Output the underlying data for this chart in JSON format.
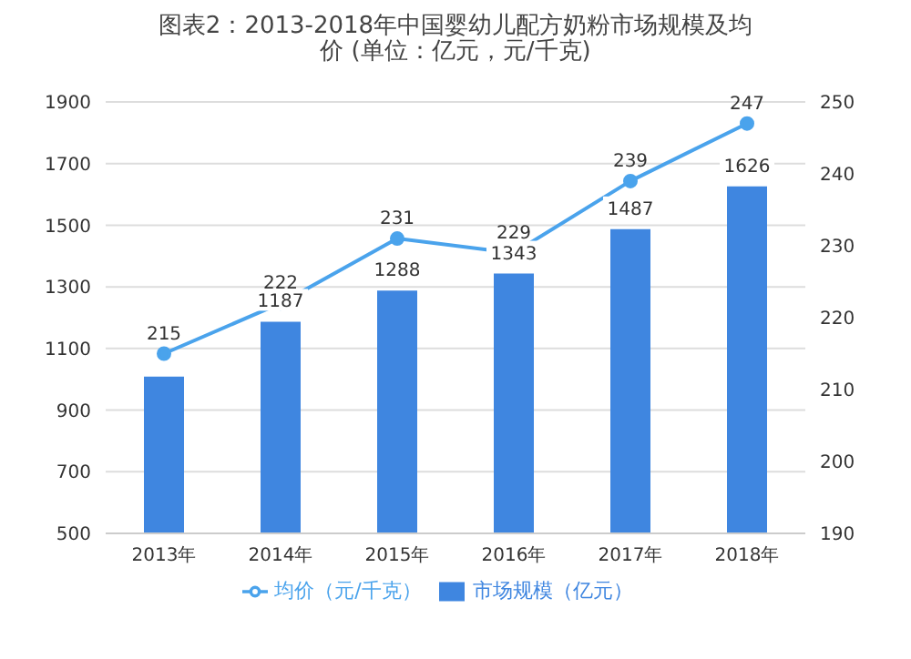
{
  "chart_data": {
    "type": "bar",
    "title": "图表2：2013-2018年中国婴幼儿配方奶粉市场规模及均价 (单位：亿元，元/千克)",
    "categories": [
      "2013年",
      "2014年",
      "2015年",
      "2016年",
      "2017年",
      "2018年"
    ],
    "series": [
      {
        "name": "市场规模（亿元）",
        "color": "#3f86e0",
        "values": [
          1009,
          1187,
          1288,
          1343,
          1487,
          1626
        ],
        "value_labels": [
          null,
          "1187",
          "1288",
          "1343",
          "1487",
          "1626"
        ]
      },
      {
        "name": "均价（元/千克）",
        "type": "line",
        "axis": "y2",
        "color": "#4aa3ec",
        "values": [
          215,
          222,
          231,
          229,
          239,
          247
        ],
        "value_labels": [
          "215",
          "222",
          "231",
          "229",
          "239",
          "247"
        ]
      }
    ],
    "ylim": [
      500,
      1900
    ],
    "yticks": [
      500,
      700,
      900,
      1100,
      1300,
      1500,
      1700,
      1900
    ],
    "y2lim": [
      190,
      250
    ],
    "y2ticks": [
      190,
      200,
      210,
      220,
      230,
      240,
      250
    ],
    "grid": "y",
    "legend": "bottom",
    "marker": "circle"
  }
}
